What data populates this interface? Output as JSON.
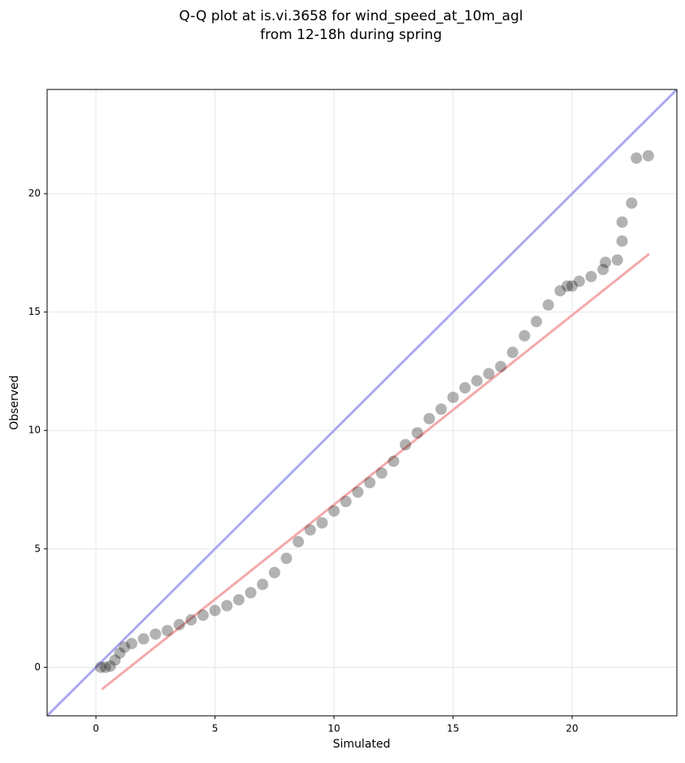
{
  "chart_data": {
    "type": "scatter",
    "title": [
      "Q-Q plot at is.vi.3658 for wind_speed_at_10m_agl",
      "from 12-18h during spring"
    ],
    "xlabel": "Simulated",
    "ylabel": "Observed",
    "xlim": [
      -2.05,
      24.4
    ],
    "ylim": [
      -2.05,
      24.4
    ],
    "xticks": [
      0,
      5,
      10,
      15,
      20
    ],
    "yticks": [
      0,
      5,
      10,
      15,
      20
    ],
    "grid": true,
    "color": "#000000",
    "opacity": 0.3,
    "x": [
      0.2,
      0.4,
      0.6,
      0.8,
      1.0,
      1.2,
      1.5,
      2.0,
      2.5,
      3.0,
      3.5,
      4.0,
      4.5,
      5.0,
      5.5,
      6.0,
      6.5,
      7.0,
      7.5,
      8.0,
      8.5,
      9.0,
      9.5,
      10.0,
      10.5,
      11.0,
      11.5,
      12.0,
      12.5,
      13.0,
      13.5,
      14.0,
      14.5,
      15.0,
      15.5,
      16.0,
      16.5,
      17.0,
      17.5,
      18.0,
      18.5,
      19.0,
      19.5,
      19.8,
      20.0,
      20.3,
      20.8,
      21.3,
      21.4,
      21.9,
      22.1,
      22.1,
      22.5,
      22.7,
      23.2
    ],
    "values": [
      0.0,
      0.0,
      0.05,
      0.3,
      0.6,
      0.85,
      1.0,
      1.2,
      1.4,
      1.55,
      1.8,
      2.0,
      2.2,
      2.4,
      2.6,
      2.85,
      3.15,
      3.5,
      4.0,
      4.6,
      5.3,
      5.8,
      6.1,
      6.6,
      7.0,
      7.4,
      7.8,
      8.2,
      8.7,
      9.4,
      9.9,
      10.5,
      10.9,
      11.4,
      11.8,
      12.1,
      12.4,
      12.7,
      13.3,
      14.0,
      14.6,
      15.3,
      15.9,
      16.1,
      16.1,
      16.3,
      16.5,
      16.8,
      17.1,
      17.2,
      18.0,
      18.8,
      19.6,
      21.5,
      21.6
    ],
    "lines": [
      {
        "color": "#aaaaf0",
        "x": [
          -2.05,
          24.4
        ],
        "y": [
          -2.05,
          24.4
        ]
      },
      {
        "color": "#f4a9a9",
        "x": [
          0.25,
          23.24
        ],
        "y": [
          -0.93,
          17.46
        ]
      }
    ]
  }
}
